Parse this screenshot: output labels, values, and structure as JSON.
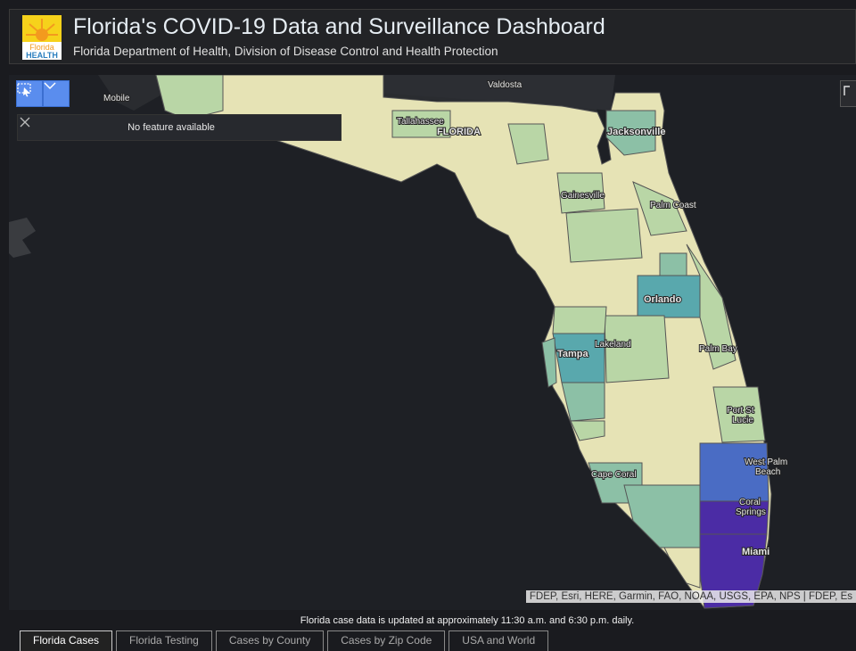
{
  "header": {
    "logo_text_top": "Florida",
    "logo_text_bottom": "HEALTH",
    "title": "Florida's COVID-19 Data and Surveillance Dashboard",
    "subtitle": "Florida Department of Health, Division of Disease Control and Health Protection"
  },
  "map": {
    "popup_text": "No feature available",
    "labels": {
      "valdosta": "Valdosta",
      "mobile": "Mobile",
      "tallahassee": "Tallahassee",
      "florida": "FLORIDA",
      "jacksonville": "Jacksonville",
      "gainesville": "Gainesville",
      "palm_coast": "Palm Coast",
      "orlando": "Orlando",
      "lakeland": "Lakeland",
      "tampa": "Tampa",
      "palm_bay": "Palm Bay",
      "port_st_lucie_1": "Port St",
      "port_st_lucie_2": "Lucie",
      "west_palm_1": "West Palm",
      "west_palm_2": "Beach",
      "cape_coral": "Cape Coral",
      "coral_springs_1": "Coral",
      "coral_springs_2": "Springs",
      "miami": "Miami"
    },
    "attribution": "FDEP, Esri, HERE, Garmin, FAO, NOAA, USGS, EPA, NPS | FDEP, Es"
  },
  "footer": {
    "note": "Florida case data is updated at approximately 11:30 a.m. and 6:30 p.m. daily.",
    "tabs": [
      "Florida Cases",
      "Florida Testing",
      "Cases by County",
      "Cases by Zip Code",
      "USA and World"
    ]
  },
  "colors": {
    "low": "#e6e3b5",
    "mid_low": "#b9d6a6",
    "mid": "#8cc0a6",
    "teal": "#59a8ad",
    "blue": "#3b88b6",
    "high": "#4a6cc4",
    "highest": "#4b2ca5"
  }
}
